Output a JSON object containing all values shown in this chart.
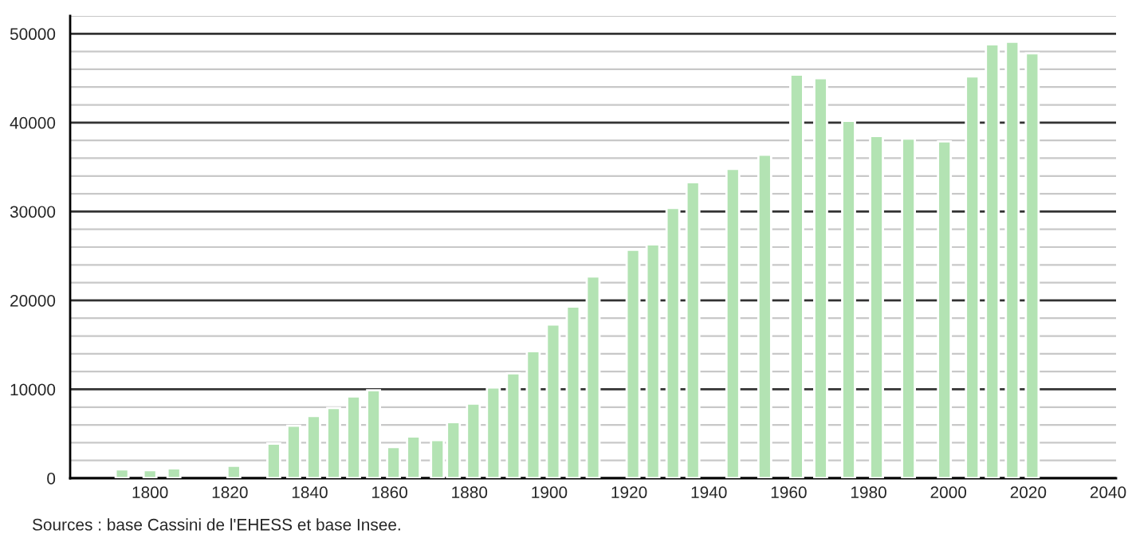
{
  "chart_data": {
    "type": "bar",
    "x": [
      1793,
      1800,
      1806,
      1821,
      1831,
      1836,
      1841,
      1846,
      1851,
      1856,
      1861,
      1866,
      1872,
      1876,
      1881,
      1886,
      1891,
      1896,
      1901,
      1906,
      1911,
      1921,
      1926,
      1931,
      1936,
      1946,
      1954,
      1962,
      1968,
      1975,
      1982,
      1990,
      1999,
      2006,
      2011,
      2016,
      2021
    ],
    "values": [
      1000,
      900,
      1100,
      1400,
      3900,
      5900,
      7000,
      7900,
      9200,
      9900,
      3500,
      4700,
      4300,
      6300,
      8400,
      10200,
      11800,
      14300,
      17300,
      19300,
      22700,
      25700,
      26300,
      30400,
      33300,
      34800,
      36400,
      45400,
      45000,
      40200,
      38500,
      38200,
      37900,
      45200,
      48800,
      49100,
      47800
    ],
    "color": "#b3e3b3",
    "xlim": [
      1780,
      2042
    ],
    "xticks": [
      1800,
      1820,
      1840,
      1860,
      1880,
      1900,
      1920,
      1940,
      1960,
      1980,
      2000,
      2020,
      2040
    ],
    "ylim": [
      0,
      52000
    ],
    "yticks": [
      0,
      {
        "value": 2000,
        "label": null
      },
      {
        "value": 4000,
        "label": null
      },
      {
        "value": 6000,
        "label": null
      },
      {
        "value": 8000,
        "label": null
      },
      10000,
      {
        "value": 12000,
        "label": null
      },
      {
        "value": 14000,
        "label": null
      },
      {
        "value": 16000,
        "label": null
      },
      {
        "value": 18000,
        "label": null
      },
      20000,
      {
        "value": 22000,
        "label": null
      },
      {
        "value": 24000,
        "label": null
      },
      {
        "value": 26000,
        "label": null
      },
      {
        "value": 28000,
        "label": null
      },
      30000,
      {
        "value": 32000,
        "label": null
      },
      {
        "value": 34000,
        "label": null
      },
      {
        "value": 36000,
        "label": null
      },
      {
        "value": 38000,
        "label": null
      },
      40000,
      {
        "value": 42000,
        "label": null
      },
      {
        "value": 44000,
        "label": null
      },
      {
        "value": 46000,
        "label": null
      },
      {
        "value": 48000,
        "label": null
      },
      50000,
      {
        "value": 52000,
        "label": null
      }
    ],
    "grid": "y",
    "annotations": [
      "Sources : base Cassini de l'EHESS et base Insee."
    ]
  }
}
